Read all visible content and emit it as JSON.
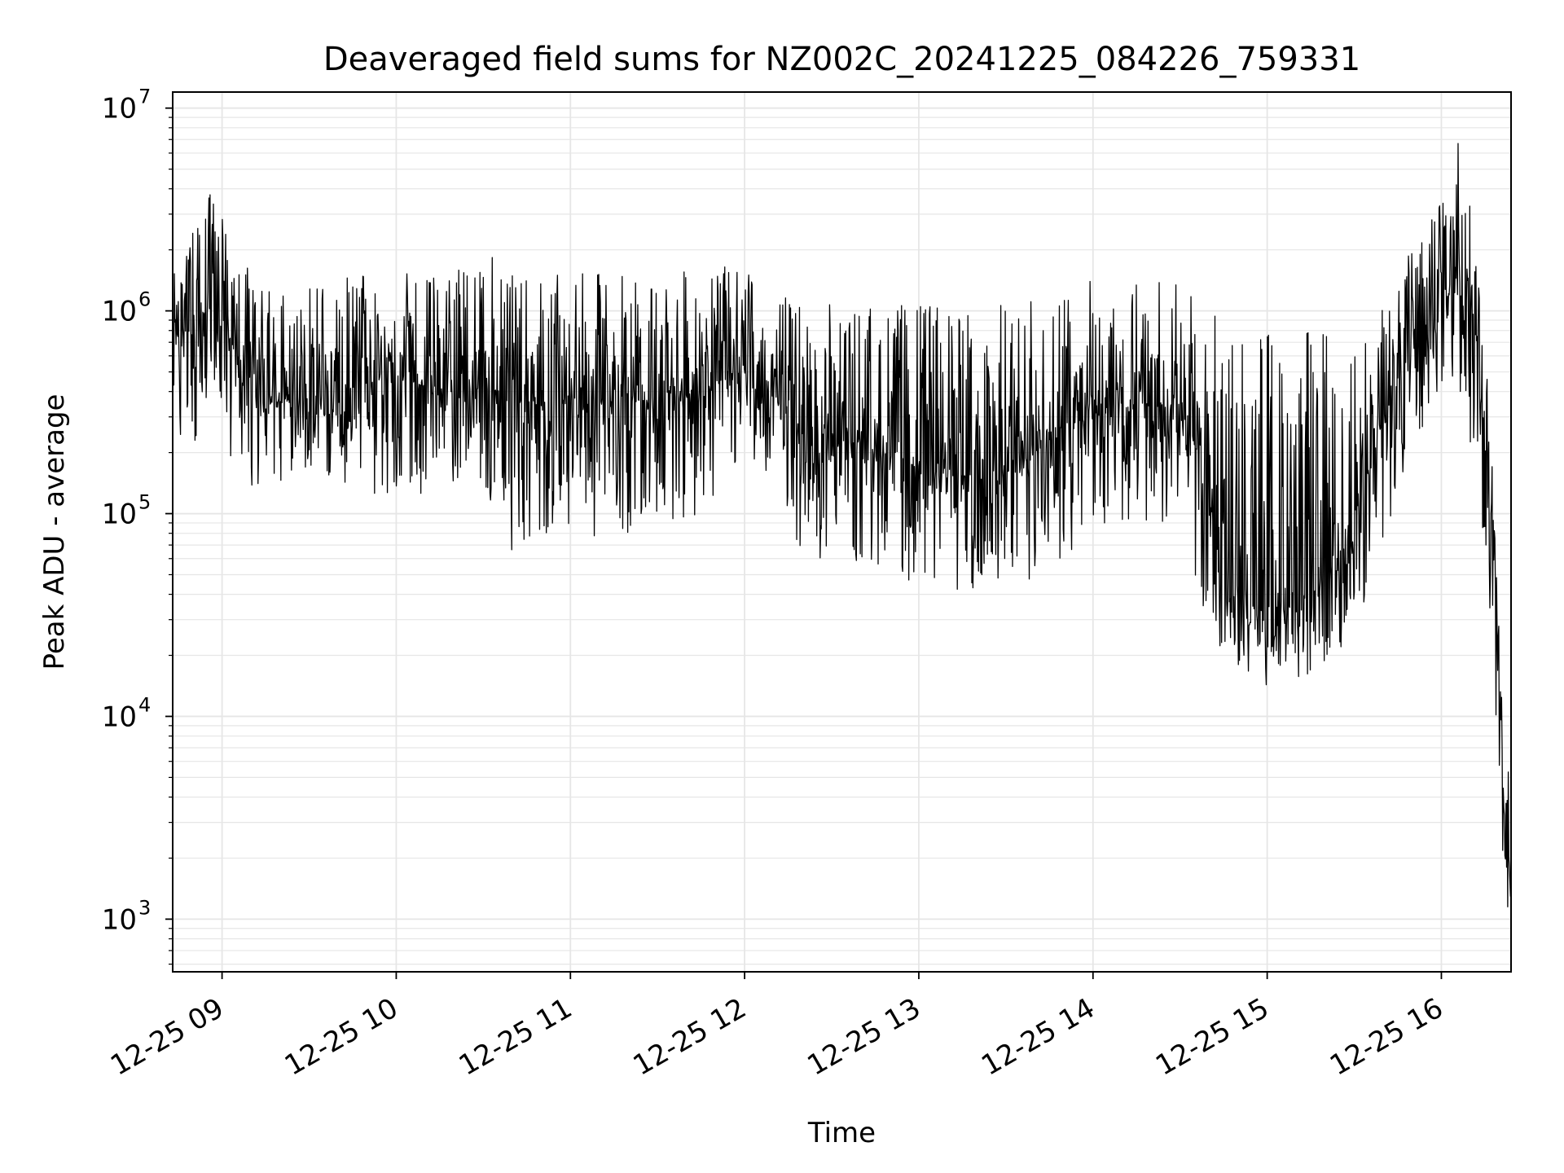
{
  "chart_data": {
    "type": "line",
    "title": "Deaveraged field sums for NZ002C_20241225_084226_759331",
    "xlabel": "Time",
    "ylabel": "Peak ADU - average",
    "yscale": "log",
    "ylim": [
      550,
      12000000
    ],
    "xlim": [
      "12-25 08:43",
      "12-25 16:24"
    ],
    "grid": true,
    "line_color": "#000000",
    "grid_color": "#e6e6e6",
    "x_ticks": [
      {
        "t": "12-25 09:00",
        "label": "12-25 09"
      },
      {
        "t": "12-25 10:00",
        "label": "12-25 10"
      },
      {
        "t": "12-25 11:00",
        "label": "12-25 11"
      },
      {
        "t": "12-25 12:00",
        "label": "12-25 12"
      },
      {
        "t": "12-25 13:00",
        "label": "12-25 13"
      },
      {
        "t": "12-25 14:00",
        "label": "12-25 14"
      },
      {
        "t": "12-25 15:00",
        "label": "12-25 15"
      },
      {
        "t": "12-25 16:00",
        "label": "12-25 16"
      }
    ],
    "y_ticks": [
      {
        "value": 1000,
        "base": "10",
        "exp": "3"
      },
      {
        "value": 10000,
        "base": "10",
        "exp": "4"
      },
      {
        "value": 100000,
        "base": "10",
        "exp": "5"
      },
      {
        "value": 1000000,
        "base": "10",
        "exp": "6"
      },
      {
        "value": 10000000,
        "base": "10",
        "exp": "7"
      }
    ],
    "series": [
      {
        "envelope": [
          {
            "t": "12-25 08:43",
            "median": 700000,
            "high": 1500000,
            "low": 250000
          },
          {
            "t": "12-25 08:50",
            "median": 800000,
            "high": 2500000,
            "low": 200000
          },
          {
            "t": "12-25 08:58",
            "median": 1000000,
            "high": 4500000,
            "low": 400000
          },
          {
            "t": "12-25 09:05",
            "median": 600000,
            "high": 2000000,
            "low": 130000
          },
          {
            "t": "12-25 09:15",
            "median": 350000,
            "high": 1300000,
            "low": 140000
          },
          {
            "t": "12-25 09:30",
            "median": 380000,
            "high": 1400000,
            "low": 150000
          },
          {
            "t": "12-25 09:45",
            "median": 420000,
            "high": 1500000,
            "low": 140000
          },
          {
            "t": "12-25 10:00",
            "median": 500000,
            "high": 1600000,
            "low": 100000
          },
          {
            "t": "12-25 10:15",
            "median": 380000,
            "high": 1500000,
            "low": 150000
          },
          {
            "t": "12-25 10:30",
            "median": 420000,
            "high": 2100000,
            "low": 130000
          },
          {
            "t": "12-25 10:40",
            "median": 350000,
            "high": 1500000,
            "low": 65000
          },
          {
            "t": "12-25 11:00",
            "median": 370000,
            "high": 1500000,
            "low": 80000
          },
          {
            "t": "12-25 11:15",
            "median": 350000,
            "high": 1600000,
            "low": 75000
          },
          {
            "t": "12-25 11:30",
            "median": 380000,
            "high": 1500000,
            "low": 90000
          },
          {
            "t": "12-25 11:45",
            "median": 420000,
            "high": 1600000,
            "low": 95000
          },
          {
            "t": "12-25 12:00",
            "median": 500000,
            "high": 1700000,
            "low": 200000
          },
          {
            "t": "12-25 12:10",
            "median": 380000,
            "high": 1300000,
            "low": 150000
          },
          {
            "t": "12-25 12:20",
            "median": 250000,
            "high": 1100000,
            "low": 60000
          },
          {
            "t": "12-25 12:40",
            "median": 220000,
            "high": 1100000,
            "low": 55000
          },
          {
            "t": "12-25 13:00",
            "median": 170000,
            "high": 1100000,
            "low": 45000
          },
          {
            "t": "12-25 13:20",
            "median": 150000,
            "high": 1100000,
            "low": 40000
          },
          {
            "t": "12-25 13:35",
            "median": 160000,
            "high": 1100000,
            "low": 28000
          },
          {
            "t": "12-25 13:50",
            "median": 280000,
            "high": 1300000,
            "low": 60000
          },
          {
            "t": "12-25 14:00",
            "median": 300000,
            "high": 1500000,
            "low": 80000
          },
          {
            "t": "12-25 14:15",
            "median": 350000,
            "high": 1500000,
            "low": 90000
          },
          {
            "t": "12-25 14:30",
            "median": 320000,
            "high": 1500000,
            "low": 90000
          },
          {
            "t": "12-25 14:38",
            "median": 200000,
            "high": 1000000,
            "low": 30000
          },
          {
            "t": "12-25 14:45",
            "median": 40000,
            "high": 900000,
            "low": 15000
          },
          {
            "t": "12-25 15:00",
            "median": 35000,
            "high": 900000,
            "low": 14000
          },
          {
            "t": "12-25 15:15",
            "median": 40000,
            "high": 900000,
            "low": 16000
          },
          {
            "t": "12-25 15:30",
            "median": 80000,
            "high": 900000,
            "low": 25000
          },
          {
            "t": "12-25 15:40",
            "median": 300000,
            "high": 1200000,
            "low": 70000
          },
          {
            "t": "12-25 15:50",
            "median": 600000,
            "high": 2000000,
            "low": 200000
          },
          {
            "t": "12-25 16:00",
            "median": 1200000,
            "high": 3500000,
            "low": 400000
          },
          {
            "t": "12-25 16:05",
            "median": 1500000,
            "high": 7800000,
            "low": 500000
          },
          {
            "t": "12-25 16:12",
            "median": 800000,
            "high": 3000000,
            "low": 150000
          },
          {
            "t": "12-25 16:17",
            "median": 100000,
            "high": 250000,
            "low": 30000
          },
          {
            "t": "12-25 16:20",
            "median": 20000,
            "high": 40000,
            "low": 5000
          },
          {
            "t": "12-25 16:22",
            "median": 2000,
            "high": 6000,
            "low": 850
          },
          {
            "t": "12-25 16:24",
            "median": 1500,
            "high": 5500,
            "low": 900
          }
        ]
      }
    ]
  }
}
